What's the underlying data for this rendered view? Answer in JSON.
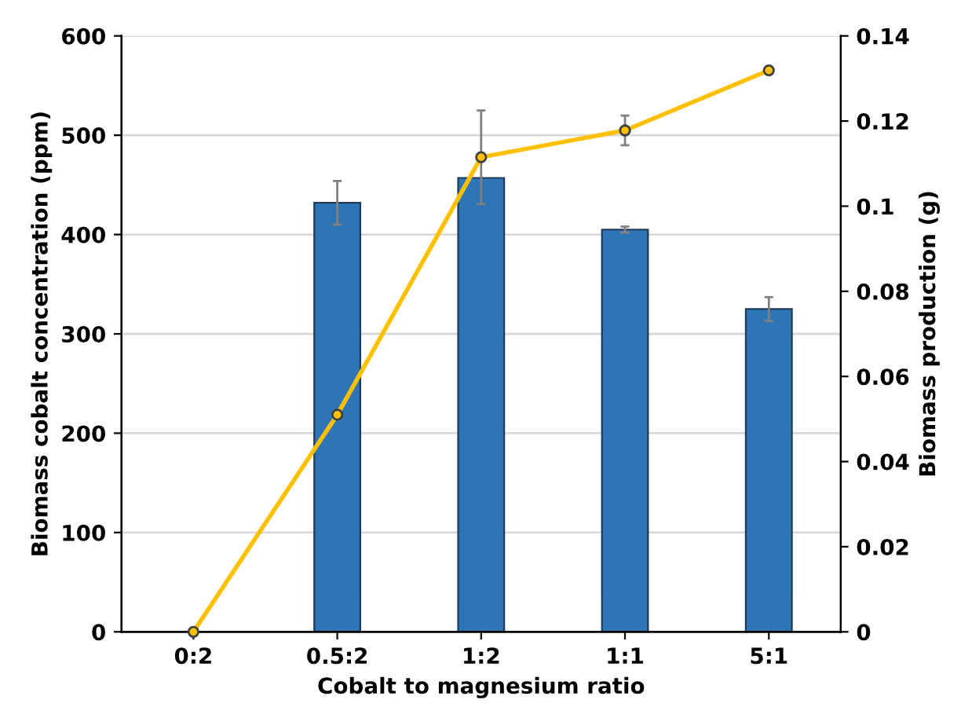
{
  "chart_data": {
    "type": "bar",
    "xlabel": "Cobalt to magnesium ratio",
    "ylabel": "Biomass cobalt concentration (ppm)",
    "y2label": "Biomass production (g)",
    "categories": [
      "0:2",
      "0.5:2",
      "1:2",
      "1:1",
      "5:1"
    ],
    "series": [
      {
        "color": "#2e75b6",
        "values": [
          null,
          432,
          457,
          405,
          325
        ],
        "errors": [
          null,
          22,
          null,
          3,
          12
        ]
      },
      {
        "type": "line",
        "axis": "y2",
        "color": "#ffc000",
        "marker": "circle",
        "values": [
          0,
          0.051,
          0.1115,
          0.1178,
          0.1319
        ],
        "errors": [
          null,
          null,
          0.011,
          0.0035,
          null
        ]
      }
    ],
    "ylim": [
      0,
      600
    ],
    "yticks": [
      0,
      100,
      200,
      300,
      400,
      500,
      600
    ],
    "y2lim": [
      0,
      0.14
    ],
    "y2ticks": [
      0,
      0.02,
      0.04,
      0.06,
      0.08,
      0.1,
      0.12,
      0.14
    ],
    "grid": "y"
  }
}
